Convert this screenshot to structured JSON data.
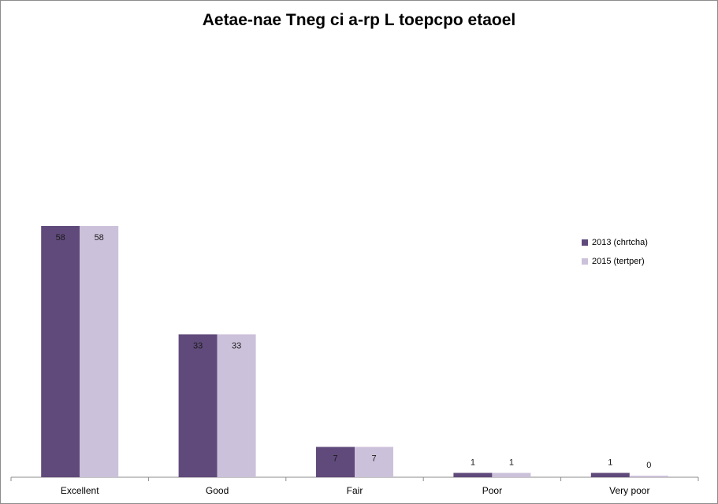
{
  "chart_data": {
    "type": "bar",
    "title": "Aetae-nae Tneg ci a-rp L toepcpo etaoel",
    "xlabel": "",
    "ylabel": "",
    "categories": [
      "Excellent",
      "Good",
      "Fair",
      "Poor",
      "Very poor"
    ],
    "series": [
      {
        "name": "2013 (chrtcha)",
        "values": [
          58,
          33,
          7,
          1,
          1
        ],
        "color": "#604a7b"
      },
      {
        "name": "2015 (tertper)",
        "values": [
          58,
          33,
          7,
          1,
          0
        ],
        "color": "#ccc1da"
      }
    ],
    "ylim": [
      0,
      100
    ],
    "grid": false,
    "legend_position": "right"
  }
}
